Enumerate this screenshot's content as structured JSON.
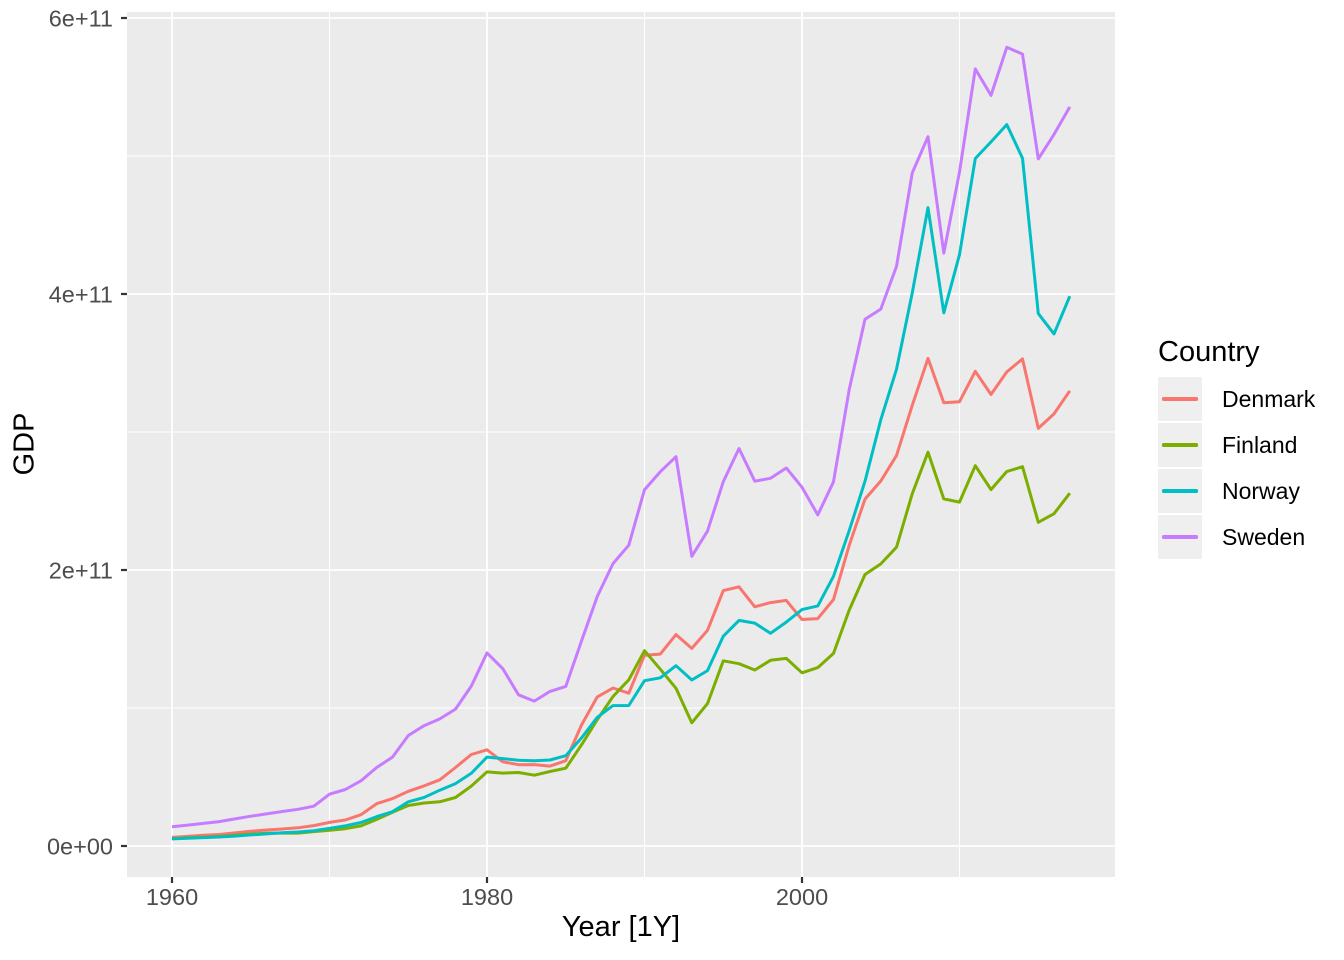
{
  "figure": {
    "kind": "ggplot-line-chart",
    "background": "#ffffff"
  },
  "y_axis": {
    "title": "GDP",
    "ticks": [
      {
        "value": 0,
        "label": "0e+00"
      },
      {
        "value": 200,
        "label": "2e+11"
      },
      {
        "value": 400,
        "label": "4e+11"
      },
      {
        "value": 600,
        "label": "6e+11"
      }
    ],
    "minor_ticks": [
      100,
      300,
      500
    ]
  },
  "x_axis": {
    "title": "Year [1Y]",
    "ticks": [
      {
        "value": 1960,
        "label": "1960"
      },
      {
        "value": 1980,
        "label": "1980"
      },
      {
        "value": 2000,
        "label": "2000"
      }
    ],
    "minor_ticks": [
      1970,
      1990,
      2010
    ]
  },
  "legend": {
    "title": "Country",
    "entries": [
      {
        "label": "Denmark",
        "color": "#F8766D"
      },
      {
        "label": "Finland",
        "color": "#7CAE00"
      },
      {
        "label": "Norway",
        "color": "#00BFC4"
      },
      {
        "label": "Sweden",
        "color": "#C77CFF"
      }
    ]
  },
  "theme": {
    "panel_background": "#EBEBEB",
    "grid_color": "#FFFFFF",
    "tick_mark_color": "#333333",
    "tick_label_color": "#4D4D4D",
    "axis_title_color": "#000000",
    "legend_key_background": "#EFEFEF"
  },
  "chart_data": {
    "type": "line",
    "title": "",
    "xlabel": "Year [1Y]",
    "ylabel": "GDP",
    "value_unit": "billions of current US$ (plotted as value * 1e9)",
    "xlim": [
      1960,
      2017
    ],
    "ylim_labels": [
      0,
      600000000000.0
    ],
    "grid": true,
    "legend_position": "right",
    "legend_title": "Country",
    "years": [
      1960,
      1961,
      1962,
      1963,
      1964,
      1965,
      1966,
      1967,
      1968,
      1969,
      1970,
      1971,
      1972,
      1973,
      1974,
      1975,
      1976,
      1977,
      1978,
      1979,
      1980,
      1981,
      1982,
      1983,
      1984,
      1985,
      1986,
      1987,
      1988,
      1989,
      1990,
      1991,
      1992,
      1993,
      1994,
      1995,
      1996,
      1997,
      1998,
      1999,
      2000,
      2001,
      2002,
      2003,
      2004,
      2005,
      2006,
      2007,
      2008,
      2009,
      2010,
      2011,
      2012,
      2013,
      2014,
      2015,
      2016,
      2017
    ],
    "series": [
      {
        "name": "Denmark",
        "color": "#F8766D",
        "values": [
          6.25,
          6.93,
          7.81,
          8.33,
          9.51,
          10.68,
          11.56,
          12.34,
          13.22,
          14.8,
          17.07,
          18.83,
          22.7,
          30.73,
          34.34,
          39.64,
          43.54,
          48.0,
          56.87,
          66.32,
          69.71,
          61.03,
          58.88,
          58.96,
          57.87,
          61.84,
          87.65,
          108.02,
          114.49,
          110.71,
          138.25,
          139.06,
          153.18,
          143.19,
          156.31,
          185.09,
          187.83,
          173.36,
          176.4,
          177.96,
          164.16,
          164.79,
          178.64,
          218.1,
          251.37,
          264.47,
          282.88,
          319.42,
          353.36,
          321.24,
          321.99,
          344.0,
          327.15,
          343.58,
          352.99,
          302.67,
          313.12,
          329.87
        ]
      },
      {
        "name": "Finland",
        "color": "#7CAE00",
        "values": [
          5.22,
          5.92,
          6.34,
          6.89,
          7.78,
          8.59,
          9.21,
          9.41,
          9.35,
          10.47,
          11.4,
          12.54,
          14.57,
          19.29,
          24.51,
          29.36,
          31.16,
          32.04,
          35.15,
          43.39,
          53.71,
          52.84,
          53.25,
          51.27,
          53.96,
          56.36,
          73.26,
          91.59,
          108.36,
          120.43,
          141.54,
          128.1,
          114.3,
          89.27,
          103.17,
          134.2,
          132.07,
          127.52,
          134.53,
          135.94,
          125.54,
          129.25,
          139.58,
          171.07,
          196.77,
          204.44,
          216.55,
          255.39,
          285.37,
          251.5,
          249.18,
          275.6,
          258.29,
          271.36,
          274.86,
          234.53,
          240.77,
          255.65
        ]
      },
      {
        "name": "Norway",
        "color": "#00BFC4",
        "values": [
          5.16,
          5.63,
          6.07,
          6.51,
          7.16,
          8.07,
          8.77,
          9.55,
          10.14,
          11.08,
          12.81,
          14.54,
          17.05,
          21.29,
          24.82,
          32.04,
          35.13,
          40.42,
          45.2,
          52.69,
          64.42,
          63.36,
          62.1,
          61.8,
          62.3,
          65.45,
          78.33,
          93.29,
          101.72,
          101.83,
          119.79,
          121.87,
          130.68,
          120.27,
          127.13,
          152.03,
          163.5,
          161.54,
          154.15,
          162.28,
          171.31,
          174.01,
          195.44,
          228.8,
          264.32,
          308.88,
          345.42,
          400.92,
          462.54,
          386.38,
          428.53,
          498.16,
          510.23,
          522.75,
          498.41,
          385.8,
          371.07,
          398.39
        ]
      },
      {
        "name": "Sweden",
        "color": "#C77CFF",
        "values": [
          13.95,
          15.12,
          16.39,
          17.7,
          19.62,
          21.59,
          23.26,
          25.0,
          26.56,
          28.87,
          37.56,
          40.94,
          47.27,
          56.94,
          64.42,
          80.09,
          87.19,
          92.08,
          99.23,
          115.85,
          139.96,
          128.45,
          109.53,
          105.03,
          112.02,
          115.67,
          148.52,
          180.86,
          204.61,
          217.96,
          258.16,
          271.24,
          282.12,
          209.91,
          228.16,
          264.05,
          288.06,
          264.33,
          266.44,
          273.9,
          260.0,
          239.94,
          263.93,
          331.11,
          381.7,
          389.04,
          420.03,
          487.82,
          513.97,
          429.66,
          488.38,
          563.11,
          543.88,
          578.74,
          573.82,
          497.92,
          515.65,
          535.61
        ]
      }
    ]
  }
}
